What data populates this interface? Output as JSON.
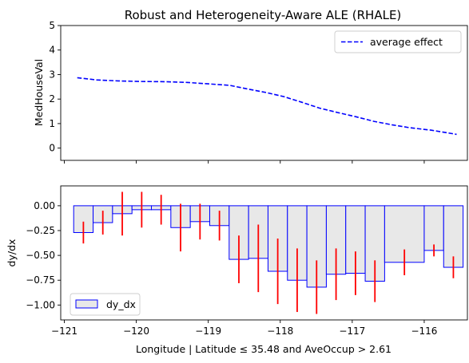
{
  "chart_data": [
    {
      "type": "line",
      "title": "Robust and Heterogeneity-Aware ALE (RHALE)",
      "xlabel": "",
      "ylabel": "MedHouseVal",
      "xlim": [
        -121.05,
        -115.4
      ],
      "ylim": [
        -0.5,
        5.0
      ],
      "yticks": [
        "0",
        "1",
        "2",
        "3",
        "4",
        "5"
      ],
      "grid": false,
      "legend_position": "top-right",
      "series": [
        {
          "name": "average effect",
          "color": "#0000ff",
          "style": "dashed",
          "x": [
            -120.82,
            -120.55,
            -120.25,
            -119.95,
            -119.6,
            -119.3,
            -119.0,
            -118.7,
            -118.45,
            -118.2,
            -117.95,
            -117.7,
            -117.45,
            -117.2,
            -116.95,
            -116.7,
            -116.45,
            -116.2,
            -115.9,
            -115.55
          ],
          "y": [
            2.87,
            2.78,
            2.74,
            2.72,
            2.71,
            2.68,
            2.62,
            2.56,
            2.41,
            2.27,
            2.1,
            1.87,
            1.63,
            1.45,
            1.28,
            1.09,
            0.95,
            0.83,
            0.73,
            0.56
          ]
        }
      ]
    },
    {
      "type": "bar",
      "title": "",
      "xlabel": "Longitude | Latitude ≤ 35.48 and AveOccup > 2.61",
      "ylabel": "dy/dx",
      "xlim": [
        -121.05,
        -115.4
      ],
      "ylim": [
        -1.15,
        0.2
      ],
      "xticks": [
        "−121",
        "−120",
        "−119",
        "−118",
        "−117",
        "−116"
      ],
      "yticks": [
        "0.00",
        "−0.25",
        "−0.50",
        "−0.75",
        "−1.00"
      ],
      "grid": false,
      "legend_position": "bottom-left",
      "bar_fill": "#e8e8e8",
      "bar_edge": "#0000ff",
      "errorbar_color": "#ff0000",
      "series": [
        {
          "name": "dy_dx",
          "bins": [
            {
              "x0": -120.87,
              "x1": -120.6,
              "value": -0.27,
              "err": 0.11
            },
            {
              "x0": -120.6,
              "x1": -120.33,
              "value": -0.17,
              "err": 0.12
            },
            {
              "x0": -120.33,
              "x1": -120.06,
              "value": -0.08,
              "err": 0.22
            },
            {
              "x0": -120.06,
              "x1": -119.79,
              "value": -0.04,
              "err": 0.18
            },
            {
              "x0": -119.79,
              "x1": -119.52,
              "value": -0.04,
              "err": 0.15
            },
            {
              "x0": -119.52,
              "x1": -119.25,
              "value": -0.22,
              "err": 0.24
            },
            {
              "x0": -119.25,
              "x1": -118.98,
              "value": -0.16,
              "err": 0.18
            },
            {
              "x0": -118.98,
              "x1": -118.71,
              "value": -0.2,
              "err": 0.15
            },
            {
              "x0": -118.71,
              "x1": -118.44,
              "value": -0.54,
              "err": 0.24
            },
            {
              "x0": -118.44,
              "x1": -118.17,
              "value": -0.53,
              "err": 0.34
            },
            {
              "x0": -118.17,
              "x1": -117.9,
              "value": -0.66,
              "err": 0.33
            },
            {
              "x0": -117.9,
              "x1": -117.63,
              "value": -0.75,
              "err": 0.32
            },
            {
              "x0": -117.63,
              "x1": -117.36,
              "value": -0.82,
              "err": 0.27
            },
            {
              "x0": -117.36,
              "x1": -117.09,
              "value": -0.69,
              "err": 0.26
            },
            {
              "x0": -117.09,
              "x1": -116.82,
              "value": -0.68,
              "err": 0.22
            },
            {
              "x0": -116.82,
              "x1": -116.55,
              "value": -0.76,
              "err": 0.21
            },
            {
              "x0": -116.55,
              "x1": -116.0,
              "value": -0.57,
              "err": 0.13
            },
            {
              "x0": -116.0,
              "x1": -115.73,
              "value": -0.45,
              "err": 0.06
            },
            {
              "x0": -115.73,
              "x1": -115.46,
              "value": -0.62,
              "err": 0.11
            }
          ]
        }
      ]
    }
  ]
}
